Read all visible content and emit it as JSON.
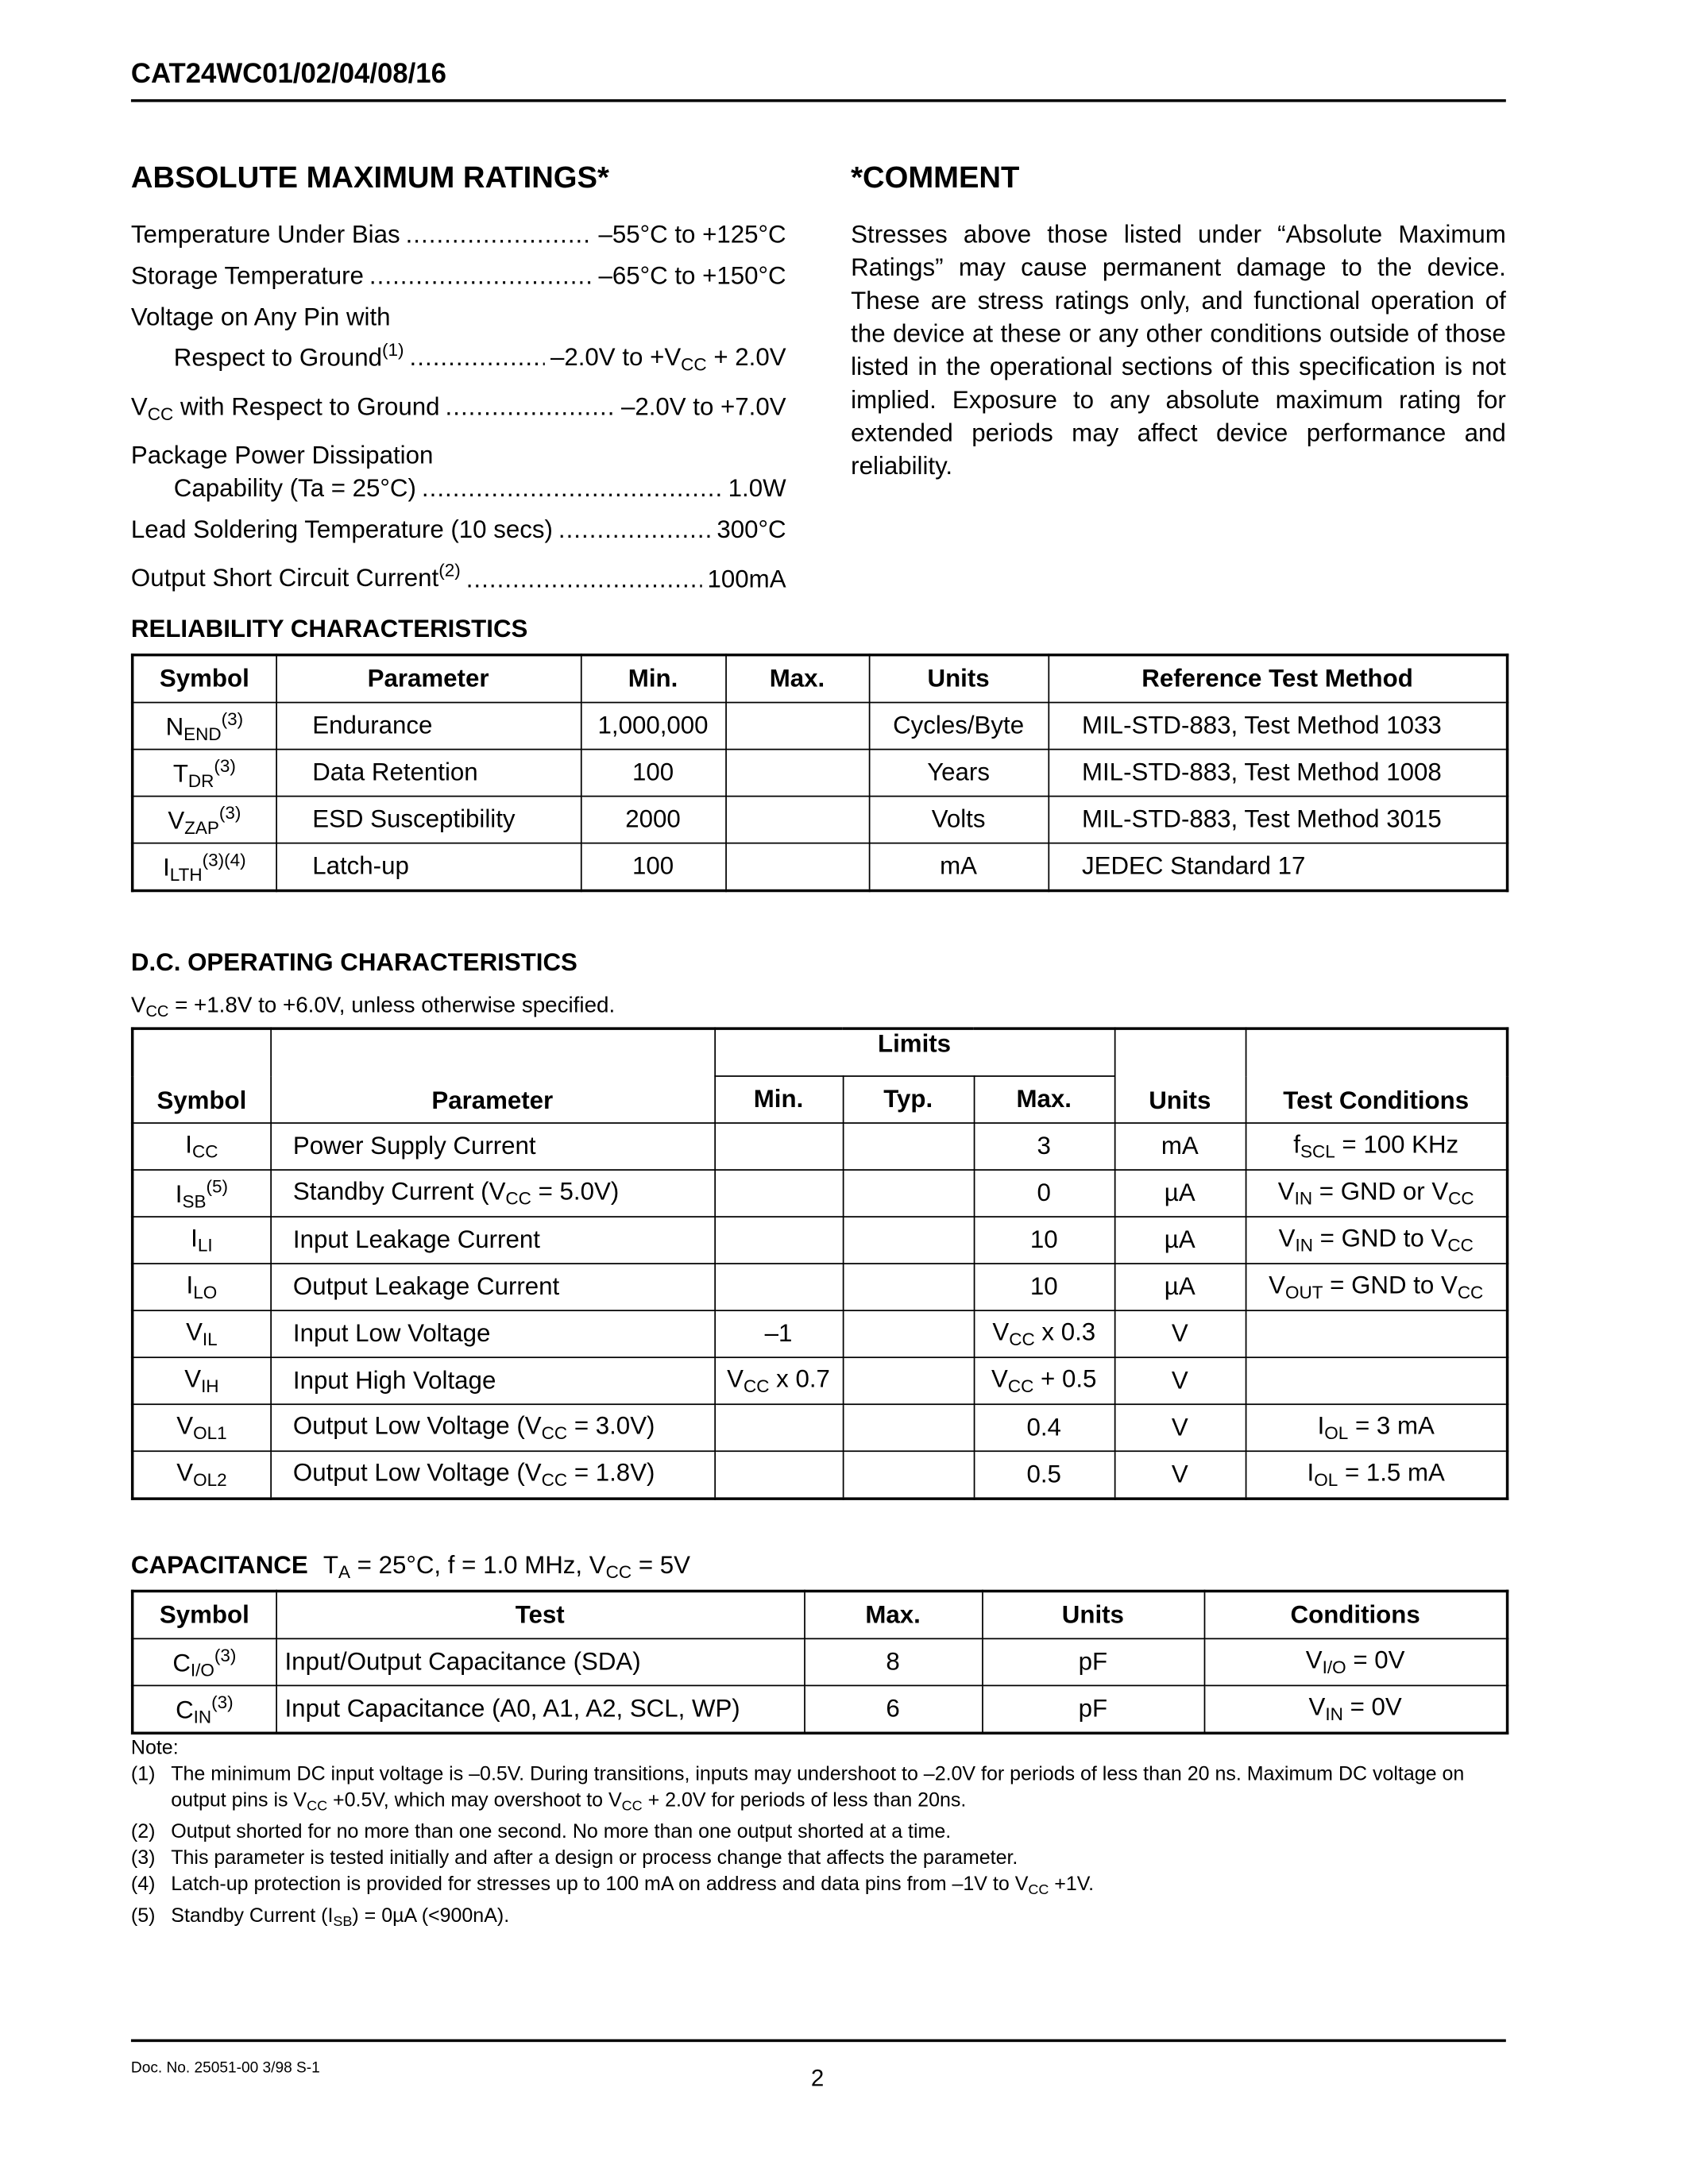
{
  "header": {
    "title": "CAT24WC01/02/04/08/16"
  },
  "absolute_max": {
    "heading": "ABSOLUTE MAXIMUM RATINGS*",
    "items": [
      {
        "label": [
          "Temperature Under Bias"
        ],
        "value": [
          "–55°C to +125°C"
        ]
      },
      {
        "label": [
          "Storage Temperature"
        ],
        "value": [
          "–65°C to +150°C"
        ]
      },
      {
        "label_line1": "Voltage on Any Pin with",
        "label": [
          "Respect to Ground",
          {
            "sup": "(1)"
          }
        ],
        "value": [
          "–2.0V to +V",
          {
            "sub": "CC"
          },
          " + 2.0V"
        ]
      },
      {
        "label": [
          "V",
          {
            "sub": "CC"
          },
          " with Respect to Ground"
        ],
        "value": [
          "–2.0V to +7.0V"
        ]
      },
      {
        "label_line1": "Package Power Dissipation",
        "label": [
          "Capability (Ta = 25°C)"
        ],
        "value": [
          "1.0W"
        ]
      },
      {
        "label": [
          "Lead Soldering Temperature (10 secs)"
        ],
        "value": [
          "300°C"
        ]
      },
      {
        "label": [
          "Output Short Circuit Current",
          {
            "sup": "(2)"
          }
        ],
        "value": [
          "100mA"
        ]
      }
    ]
  },
  "comment": {
    "heading": "*COMMENT",
    "text": "Stresses above those listed under “Absolute Maximum Ratings” may cause permanent damage to the device. These are stress ratings only, and functional operation of the device at these or any other conditions outside of those listed in the operational sections of this specification is not implied. Exposure to any absolute maximum rating for extended periods may affect device performance and reliability."
  },
  "reliability": {
    "title": "RELIABILITY CHARACTERISTICS",
    "headers": [
      "Symbol",
      "Parameter",
      "Min.",
      "Max.",
      "Units",
      "Reference Test Method"
    ],
    "rows": [
      [
        [
          "N",
          {
            "sub": "END"
          },
          {
            "sup": "(3)"
          }
        ],
        [
          "Endurance"
        ],
        [
          "1,000,000"
        ],
        [
          ""
        ],
        [
          "Cycles/Byte"
        ],
        [
          "MIL-STD-883, Test Method 1033"
        ]
      ],
      [
        [
          "T",
          {
            "sub": "DR"
          },
          {
            "sup": "(3)"
          }
        ],
        [
          "Data Retention"
        ],
        [
          "100"
        ],
        [
          ""
        ],
        [
          "Years"
        ],
        [
          "MIL-STD-883, Test Method 1008"
        ]
      ],
      [
        [
          "V",
          {
            "sub": "ZAP"
          },
          {
            "sup": "(3)"
          }
        ],
        [
          "ESD Susceptibility"
        ],
        [
          "2000"
        ],
        [
          ""
        ],
        [
          "Volts"
        ],
        [
          "MIL-STD-883, Test Method 3015"
        ]
      ],
      [
        [
          "I",
          {
            "sub": "LTH"
          },
          {
            "sup": "(3)(4)"
          }
        ],
        [
          "Latch-up"
        ],
        [
          "100"
        ],
        [
          ""
        ],
        [
          "mA"
        ],
        [
          "JEDEC Standard 17"
        ]
      ]
    ]
  },
  "dc": {
    "title": "D.C. OPERATING CHARACTERISTICS",
    "subtitle": [
      "V",
      {
        "sub": "CC"
      },
      " = +1.8V to +6.0V, unless otherwise specified."
    ],
    "limits_label": "Limits",
    "headers": [
      "Symbol",
      "Parameter",
      "Min.",
      "Typ.",
      "Max.",
      "Units",
      "Test Conditions"
    ],
    "rows": [
      [
        [
          "I",
          {
            "sub": "CC"
          }
        ],
        [
          "Power Supply Current"
        ],
        [
          ""
        ],
        [
          ""
        ],
        [
          "3"
        ],
        [
          "mA"
        ],
        [
          "f",
          {
            "sub": "SCL"
          },
          " = 100 KHz"
        ]
      ],
      [
        [
          "I",
          {
            "sub": "SB"
          },
          {
            "sup": "(5)"
          }
        ],
        [
          "Standby Current (V",
          {
            "sub": "CC"
          },
          " = 5.0V)"
        ],
        [
          ""
        ],
        [
          ""
        ],
        [
          "0"
        ],
        [
          "µA"
        ],
        [
          "V",
          {
            "sub": "IN"
          },
          " = GND or V",
          {
            "sub": "CC"
          }
        ]
      ],
      [
        [
          "I",
          {
            "sub": "LI"
          }
        ],
        [
          "Input Leakage Current"
        ],
        [
          ""
        ],
        [
          ""
        ],
        [
          "10"
        ],
        [
          "µA"
        ],
        [
          "V",
          {
            "sub": "IN"
          },
          " = GND to V",
          {
            "sub": "CC"
          }
        ]
      ],
      [
        [
          "I",
          {
            "sub": "LO"
          }
        ],
        [
          "Output Leakage Current"
        ],
        [
          ""
        ],
        [
          ""
        ],
        [
          "10"
        ],
        [
          "µA"
        ],
        [
          "V",
          {
            "sub": "OUT"
          },
          " = GND to V",
          {
            "sub": "CC"
          }
        ]
      ],
      [
        [
          "V",
          {
            "sub": "IL"
          }
        ],
        [
          "Input Low Voltage"
        ],
        [
          "–1"
        ],
        [
          ""
        ],
        [
          "V",
          {
            "sub": "CC"
          },
          " x 0.3"
        ],
        [
          "V"
        ],
        [
          ""
        ]
      ],
      [
        [
          "V",
          {
            "sub": "IH"
          }
        ],
        [
          "Input High Voltage"
        ],
        [
          "V",
          {
            "sub": "CC"
          },
          " x 0.7"
        ],
        [
          ""
        ],
        [
          "V",
          {
            "sub": "CC"
          },
          " + 0.5"
        ],
        [
          "V"
        ],
        [
          ""
        ]
      ],
      [
        [
          "V",
          {
            "sub": "OL1"
          }
        ],
        [
          "Output Low Voltage (V",
          {
            "sub": "CC"
          },
          " = 3.0V)"
        ],
        [
          ""
        ],
        [
          ""
        ],
        [
          "0.4"
        ],
        [
          "V"
        ],
        [
          "I",
          {
            "sub": "OL"
          },
          " = 3 mA"
        ]
      ],
      [
        [
          "V",
          {
            "sub": "OL2"
          }
        ],
        [
          "Output Low Voltage (V",
          {
            "sub": "CC"
          },
          " = 1.8V)"
        ],
        [
          ""
        ],
        [
          ""
        ],
        [
          "0.5"
        ],
        [
          "V"
        ],
        [
          "I",
          {
            "sub": "OL"
          },
          " = 1.5 mA"
        ]
      ]
    ]
  },
  "capacitance": {
    "title": "CAPACITANCE",
    "conditions": [
      "T",
      {
        "sub": "A"
      },
      " = 25°C, f = 1.0 MHz, V",
      {
        "sub": "CC"
      },
      " = 5V"
    ],
    "headers": [
      "Symbol",
      "Test",
      "Max.",
      "Units",
      "Conditions"
    ],
    "rows": [
      [
        [
          "C",
          {
            "sub": "I/O"
          },
          {
            "sup": "(3)"
          }
        ],
        [
          "Input/Output Capacitance (SDA)"
        ],
        [
          "8"
        ],
        [
          "pF"
        ],
        [
          "V",
          {
            "sub": "I/O"
          },
          " = 0V"
        ]
      ],
      [
        [
          "C",
          {
            "sub": "IN"
          },
          {
            "sup": "(3)"
          }
        ],
        [
          "Input Capacitance (A0, A1, A2, SCL, WP)"
        ],
        [
          "6"
        ],
        [
          "pF"
        ],
        [
          "V",
          {
            "sub": "IN"
          },
          " = 0V"
        ]
      ]
    ]
  },
  "notes": {
    "label": "Note:",
    "items": [
      {
        "num": "(1)",
        "text": [
          "The minimum DC input voltage is –0.5V. During transitions, inputs may undershoot to –2.0V for periods of less than 20 ns. Maximum DC voltage on output pins is V",
          {
            "sub": "CC"
          },
          " +0.5V, which may overshoot to V",
          {
            "sub": "CC"
          },
          " + 2.0V for periods of less than 20ns."
        ]
      },
      {
        "num": "(2)",
        "text": [
          "Output shorted for no more than one second. No more than one output shorted at a time."
        ]
      },
      {
        "num": "(3)",
        "text": [
          "This parameter is tested initially and after a design or process change that affects the parameter."
        ]
      },
      {
        "num": "(4)",
        "text": [
          "Latch-up protection is provided for stresses up to 100 mA on address and data pins from –1V to V",
          {
            "sub": "CC"
          },
          " +1V."
        ]
      },
      {
        "num": "(5)",
        "text": [
          "Standby Current (I",
          {
            "sub": "SB"
          },
          ") = 0µA (<900nA)."
        ]
      }
    ]
  },
  "footer": {
    "doc_number": "Doc. No. 25051-00 3/98  S-1",
    "page": "2"
  }
}
